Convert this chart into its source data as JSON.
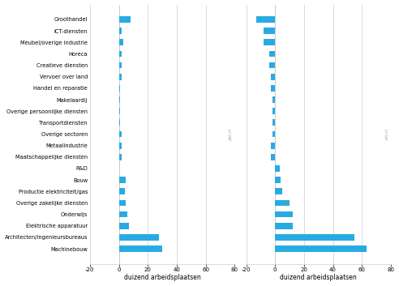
{
  "categories": [
    "Groothandel",
    "ICT-diensten",
    "Meubel/overige industrie",
    "Horeca",
    "Creatieve diensten",
    "Vervoer over land",
    "Handel en reparatie",
    "Makelaardij",
    "Overige persoonlijke diensten",
    "Transportdiensten",
    "Overige sectoren",
    "Metaalindustrie",
    "Maatschappelijke diensten",
    "R&D",
    "Bouw",
    "Productie elektriciteit/gas",
    "Overige zakelijke diensten",
    "Onderwijs",
    "Elektrische apparatuur",
    "Architecten/ingenieursbureaus",
    "Machinebouw"
  ],
  "left_values": [
    8,
    2,
    3,
    2,
    2,
    2,
    1,
    1,
    1,
    1,
    2,
    2,
    2,
    0,
    5,
    4,
    5,
    6,
    7,
    28,
    30
  ],
  "right_values": [
    -13,
    -8,
    -8,
    -4,
    -4,
    -3,
    -3,
    -2,
    -2,
    -2,
    -2,
    -3,
    -3,
    3,
    4,
    5,
    10,
    12,
    12,
    55,
    63
  ],
  "bar_color": "#29abe2",
  "xlabel": "duizend arbeidsplaatsen",
  "watermark_left": "pbl.nl",
  "watermark_right": "rdi.nl",
  "background_color": "#ffffff",
  "bar_height": 0.55,
  "left_xlim": [
    -20,
    80
  ],
  "right_xlim": [
    -20,
    80
  ],
  "xticks": [
    -20,
    0,
    20,
    40,
    60,
    80
  ]
}
